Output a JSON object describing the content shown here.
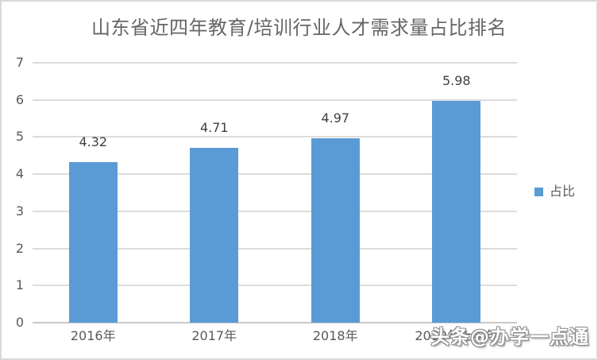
{
  "title": "山东省近四年教育/培训行业人才需求量占比排名",
  "legend": {
    "label": "占比",
    "swatch_color": "#5B9BD5"
  },
  "watermark": "头条@办学一点通",
  "colors": {
    "bar": "#5B9BD5",
    "gridline": "#DCDCDC",
    "axis_line": "#C9C9C9",
    "title_text": "#666666",
    "axis_text": "#595959",
    "value_label_text": "#404040",
    "frame_border": "#D9D9D9",
    "background": "#FFFFFF"
  },
  "chart_data": {
    "type": "bar",
    "title": "山东省近四年教育/培训行业人才需求量占比排名",
    "categories": [
      "2016年",
      "2017年",
      "2018年",
      "2019年上半年"
    ],
    "series": [
      {
        "name": "占比",
        "values": [
          4.32,
          4.71,
          4.97,
          5.98
        ]
      }
    ],
    "value_labels": [
      "4.32",
      "4.71",
      "4.97",
      "5.98"
    ],
    "xlabel": "",
    "ylabel": "",
    "ylim": [
      0,
      7
    ],
    "ytick_step": 1,
    "yticks": [
      0,
      1,
      2,
      3,
      4,
      5,
      6,
      7
    ],
    "grid": true,
    "legend_position": "right"
  }
}
